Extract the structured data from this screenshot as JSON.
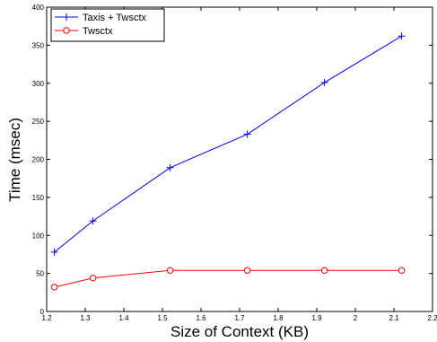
{
  "chart_data": {
    "type": "line",
    "title": "",
    "xlabel": "Size of Context (KB)",
    "ylabel": "Time (msec)",
    "xlim": [
      1.2,
      2.2
    ],
    "ylim": [
      0,
      400
    ],
    "xticks": [
      "1.2",
      "1.3",
      "1.4",
      "1.5",
      "1.6",
      "1.7",
      "1.8",
      "1.9",
      "2",
      "2.1",
      "2.2"
    ],
    "yticks": [
      "0",
      "50",
      "100",
      "150",
      "200",
      "250",
      "300",
      "350",
      "400"
    ],
    "grid": false,
    "legend_position": "top-left",
    "x": [
      1.22,
      1.32,
      1.52,
      1.72,
      1.92,
      2.12
    ],
    "series": [
      {
        "name": "Taxis + Twsctx",
        "color": "#0000ff",
        "marker": "plus",
        "values": [
          78,
          119,
          189,
          233,
          301,
          362
        ]
      },
      {
        "name": "Twsctx",
        "color": "#ff0000",
        "marker": "circle",
        "values": [
          32,
          44,
          54,
          54,
          54,
          54
        ]
      }
    ]
  }
}
